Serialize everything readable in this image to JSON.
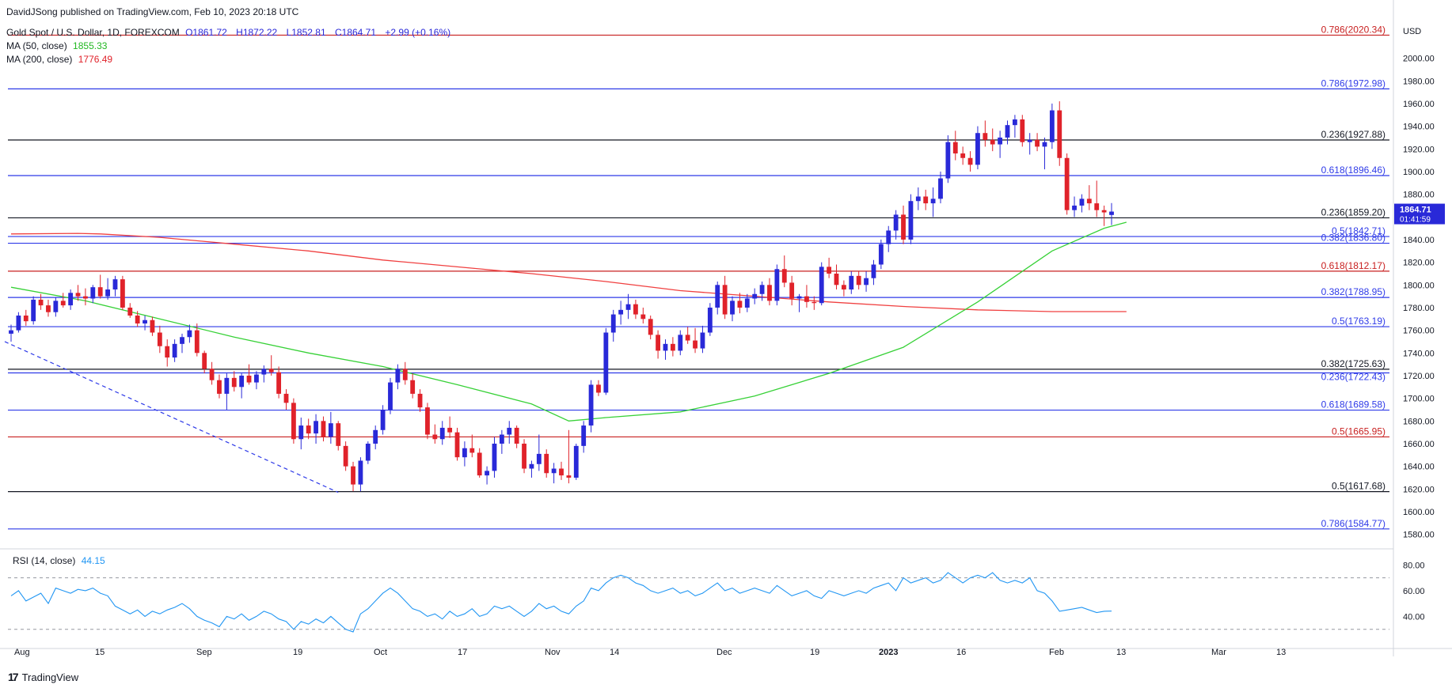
{
  "publisher": "DavidJSong published on TradingView.com, Feb 10, 2023 20:18 UTC",
  "footer_brand": "TradingView",
  "colors": {
    "up": "#2929d8",
    "down": "#e0222a",
    "ma50": "#37d137",
    "ma200": "#f04040",
    "rsi": "#2196f3",
    "blue_line": "#2e3ae8",
    "red_line": "#c82020",
    "black_line": "#131722"
  },
  "legend": {
    "symbol": "Gold Spot / U.S. Dollar, 1D, FOREXCOM",
    "ohlc": [
      {
        "k": "O",
        "v": "1861.72"
      },
      {
        "k": "H",
        "v": "1872.22"
      },
      {
        "k": "L",
        "v": "1852.81"
      },
      {
        "k": "C",
        "v": "1864.71"
      }
    ],
    "change": "+2.99 (+0.16%)",
    "ma50": {
      "label": "MA (50, close)",
      "value": "1855.33"
    },
    "ma200": {
      "label": "MA (200, close)",
      "value": "1776.49"
    }
  },
  "rsi": {
    "label": "RSI (14, close)",
    "value": "44.15"
  },
  "chart_data": {
    "type": "candlestick",
    "currency": "USD",
    "ylim": [
      1570,
      2036
    ],
    "y_ticks": [
      1580,
      1600,
      1620,
      1640,
      1660,
      1680,
      1700,
      1720,
      1740,
      1760,
      1780,
      1800,
      1820,
      1840,
      1860,
      1880,
      1900,
      1920,
      1940,
      1960,
      1980,
      2000
    ],
    "x_ticks": [
      "Aug",
      "15",
      "Sep",
      "19",
      "Oct",
      "17",
      "Nov",
      "14",
      "Dec",
      "19",
      "2023",
      "16",
      "Feb",
      "13",
      "Mar",
      "13"
    ],
    "last_price": {
      "value": "1864.71",
      "countdown": "01:41:59"
    },
    "fib_levels": [
      {
        "label": "0.786(2020.34)",
        "value": 2020.34,
        "color": "red"
      },
      {
        "label": "0.786(1972.98)",
        "value": 1972.98,
        "color": "blue"
      },
      {
        "label": "0.236(1927.88)",
        "value": 1927.88,
        "color": "black"
      },
      {
        "label": "0.618(1896.46)",
        "value": 1896.46,
        "color": "blue"
      },
      {
        "label": "0.236(1859.20)",
        "value": 1859.2,
        "color": "black"
      },
      {
        "label": "0.5(1842.71)",
        "value": 1842.71,
        "color": "blue"
      },
      {
        "label": "0.382(1836.80)",
        "value": 1836.8,
        "color": "blue"
      },
      {
        "label": "0.618(1812.17)",
        "value": 1812.17,
        "color": "red"
      },
      {
        "label": "0.382(1788.95)",
        "value": 1788.95,
        "color": "blue"
      },
      {
        "label": "0.5(1763.19)",
        "value": 1763.19,
        "color": "blue"
      },
      {
        "label": "0.382(1725.63)",
        "value": 1725.63,
        "color": "black"
      },
      {
        "label": "0.236(1722.43)",
        "value": 1722.43,
        "color": "blue"
      },
      {
        "label": "0.618(1689.58)",
        "value": 1689.58,
        "color": "blue"
      },
      {
        "label": "0.5(1665.95)",
        "value": 1665.95,
        "color": "red"
      },
      {
        "label": "0.5(1617.68)",
        "value": 1617.68,
        "color": "black"
      },
      {
        "label": "0.786(1584.77)",
        "value": 1584.77,
        "color": "blue"
      }
    ],
    "candles": [
      [
        1757,
        1765,
        1750,
        1760
      ],
      [
        1760,
        1776,
        1758,
        1773
      ],
      [
        1773,
        1778,
        1764,
        1768
      ],
      [
        1768,
        1790,
        1765,
        1787
      ],
      [
        1787,
        1792,
        1778,
        1782
      ],
      [
        1782,
        1787,
        1772,
        1776
      ],
      [
        1776,
        1789,
        1772,
        1786
      ],
      [
        1786,
        1793,
        1780,
        1782
      ],
      [
        1782,
        1796,
        1778,
        1793
      ],
      [
        1793,
        1800,
        1786,
        1790
      ],
      [
        1790,
        1797,
        1782,
        1788
      ],
      [
        1788,
        1800,
        1784,
        1798
      ],
      [
        1798,
        1809,
        1788,
        1790
      ],
      [
        1790,
        1806,
        1787,
        1796
      ],
      [
        1796,
        1808,
        1790,
        1805
      ],
      [
        1805,
        1808,
        1778,
        1780
      ],
      [
        1780,
        1784,
        1771,
        1773
      ],
      [
        1773,
        1777,
        1763,
        1766
      ],
      [
        1766,
        1773,
        1760,
        1769
      ],
      [
        1769,
        1772,
        1755,
        1758
      ],
      [
        1758,
        1764,
        1740,
        1746
      ],
      [
        1746,
        1752,
        1728,
        1736
      ],
      [
        1736,
        1752,
        1732,
        1748
      ],
      [
        1748,
        1757,
        1740,
        1754
      ],
      [
        1754,
        1765,
        1749,
        1760
      ],
      [
        1760,
        1766,
        1737,
        1740
      ],
      [
        1740,
        1742,
        1722,
        1726
      ],
      [
        1726,
        1732,
        1712,
        1716
      ],
      [
        1716,
        1721,
        1700,
        1704
      ],
      [
        1704,
        1722,
        1690,
        1718
      ],
      [
        1718,
        1724,
        1706,
        1710
      ],
      [
        1710,
        1722,
        1700,
        1720
      ],
      [
        1720,
        1730,
        1712,
        1714
      ],
      [
        1714,
        1724,
        1708,
        1721
      ],
      [
        1721,
        1729,
        1714,
        1726
      ],
      [
        1726,
        1738,
        1720,
        1723
      ],
      [
        1723,
        1728,
        1700,
        1704
      ],
      [
        1704,
        1708,
        1690,
        1696
      ],
      [
        1696,
        1700,
        1660,
        1664
      ],
      [
        1664,
        1683,
        1655,
        1676
      ],
      [
        1676,
        1682,
        1664,
        1669
      ],
      [
        1669,
        1686,
        1660,
        1680
      ],
      [
        1680,
        1684,
        1662,
        1666
      ],
      [
        1666,
        1688,
        1660,
        1678
      ],
      [
        1678,
        1680,
        1654,
        1658
      ],
      [
        1658,
        1662,
        1636,
        1640
      ],
      [
        1640,
        1644,
        1618,
        1624
      ],
      [
        1624,
        1648,
        1618,
        1645
      ],
      [
        1645,
        1662,
        1642,
        1660
      ],
      [
        1660,
        1676,
        1655,
        1672
      ],
      [
        1672,
        1694,
        1668,
        1690
      ],
      [
        1690,
        1718,
        1686,
        1714
      ],
      [
        1714,
        1730,
        1708,
        1726
      ],
      [
        1726,
        1732,
        1712,
        1716
      ],
      [
        1716,
        1722,
        1700,
        1704
      ],
      [
        1704,
        1708,
        1688,
        1692
      ],
      [
        1692,
        1696,
        1664,
        1668
      ],
      [
        1668,
        1677,
        1660,
        1664
      ],
      [
        1664,
        1680,
        1659,
        1674
      ],
      [
        1674,
        1684,
        1665,
        1670
      ],
      [
        1670,
        1674,
        1645,
        1648
      ],
      [
        1648,
        1662,
        1640,
        1656
      ],
      [
        1656,
        1668,
        1648,
        1652
      ],
      [
        1652,
        1656,
        1630,
        1632
      ],
      [
        1632,
        1640,
        1624,
        1636
      ],
      [
        1636,
        1666,
        1630,
        1660
      ],
      [
        1660,
        1672,
        1651,
        1668
      ],
      [
        1668,
        1680,
        1660,
        1674
      ],
      [
        1674,
        1676,
        1656,
        1660
      ],
      [
        1660,
        1664,
        1634,
        1638
      ],
      [
        1638,
        1645,
        1630,
        1642
      ],
      [
        1642,
        1668,
        1636,
        1651
      ],
      [
        1651,
        1655,
        1630,
        1634
      ],
      [
        1634,
        1643,
        1625,
        1638
      ],
      [
        1638,
        1644,
        1628,
        1632
      ],
      [
        1632,
        1672,
        1625,
        1630
      ],
      [
        1630,
        1660,
        1628,
        1658
      ],
      [
        1658,
        1680,
        1652,
        1676
      ],
      [
        1676,
        1716,
        1670,
        1712
      ],
      [
        1712,
        1716,
        1702,
        1705
      ],
      [
        1705,
        1762,
        1703,
        1758
      ],
      [
        1758,
        1778,
        1750,
        1774
      ],
      [
        1774,
        1786,
        1765,
        1778
      ],
      [
        1778,
        1792,
        1770,
        1783
      ],
      [
        1783,
        1787,
        1770,
        1774
      ],
      [
        1774,
        1780,
        1766,
        1770
      ],
      [
        1770,
        1773,
        1752,
        1756
      ],
      [
        1756,
        1760,
        1735,
        1742
      ],
      [
        1742,
        1752,
        1734,
        1748
      ],
      [
        1748,
        1754,
        1737,
        1742
      ],
      [
        1742,
        1760,
        1738,
        1756
      ],
      [
        1756,
        1763,
        1748,
        1751
      ],
      [
        1751,
        1762,
        1740,
        1744
      ],
      [
        1744,
        1764,
        1740,
        1758
      ],
      [
        1758,
        1784,
        1755,
        1780
      ],
      [
        1780,
        1803,
        1774,
        1800
      ],
      [
        1800,
        1808,
        1770,
        1774
      ],
      [
        1774,
        1790,
        1768,
        1786
      ],
      [
        1786,
        1793,
        1775,
        1780
      ],
      [
        1780,
        1792,
        1776,
        1788
      ],
      [
        1788,
        1797,
        1783,
        1792
      ],
      [
        1792,
        1803,
        1786,
        1800
      ],
      [
        1800,
        1806,
        1782,
        1786
      ],
      [
        1786,
        1818,
        1782,
        1814
      ],
      [
        1814,
        1826,
        1798,
        1802
      ],
      [
        1802,
        1808,
        1782,
        1788
      ],
      [
        1788,
        1792,
        1776,
        1790
      ],
      [
        1790,
        1800,
        1780,
        1785
      ],
      [
        1785,
        1790,
        1778,
        1784
      ],
      [
        1784,
        1820,
        1782,
        1816
      ],
      [
        1816,
        1824,
        1806,
        1810
      ],
      [
        1810,
        1818,
        1796,
        1800
      ],
      [
        1800,
        1804,
        1790,
        1796
      ],
      [
        1796,
        1812,
        1792,
        1808
      ],
      [
        1808,
        1812,
        1796,
        1800
      ],
      [
        1800,
        1812,
        1794,
        1806
      ],
      [
        1806,
        1822,
        1800,
        1818
      ],
      [
        1818,
        1840,
        1814,
        1836
      ],
      [
        1836,
        1852,
        1829,
        1848
      ],
      [
        1848,
        1866,
        1840,
        1862
      ],
      [
        1862,
        1870,
        1836,
        1840
      ],
      [
        1840,
        1880,
        1836,
        1874
      ],
      [
        1874,
        1886,
        1866,
        1878
      ],
      [
        1878,
        1884,
        1866,
        1872
      ],
      [
        1872,
        1886,
        1860,
        1876
      ],
      [
        1876,
        1900,
        1872,
        1894
      ],
      [
        1894,
        1932,
        1890,
        1926
      ],
      [
        1926,
        1936,
        1910,
        1916
      ],
      [
        1916,
        1922,
        1906,
        1912
      ],
      [
        1912,
        1918,
        1900,
        1906
      ],
      [
        1906,
        1940,
        1902,
        1934
      ],
      [
        1934,
        1945,
        1922,
        1928
      ],
      [
        1928,
        1938,
        1918,
        1924
      ],
      [
        1924,
        1936,
        1912,
        1930
      ],
      [
        1930,
        1945,
        1924,
        1941
      ],
      [
        1941,
        1950,
        1930,
        1946
      ],
      [
        1946,
        1950,
        1922,
        1926
      ],
      [
        1926,
        1934,
        1915,
        1928
      ],
      [
        1928,
        1934,
        1918,
        1922
      ],
      [
        1922,
        1930,
        1902,
        1926
      ],
      [
        1926,
        1960,
        1920,
        1954
      ],
      [
        1954,
        1962,
        1905,
        1912
      ],
      [
        1912,
        1916,
        1862,
        1866
      ],
      [
        1866,
        1878,
        1860,
        1870
      ],
      [
        1870,
        1880,
        1864,
        1876
      ],
      [
        1876,
        1888,
        1866,
        1872
      ],
      [
        1872,
        1892,
        1860,
        1866
      ],
      [
        1866,
        1870,
        1852,
        1864
      ],
      [
        1861.72,
        1872.22,
        1852.81,
        1864.71
      ]
    ],
    "ma200": [
      [
        0,
        1845
      ],
      [
        9,
        1845.5
      ],
      [
        12,
        1845
      ],
      [
        20,
        1842
      ],
      [
        30,
        1836
      ],
      [
        40,
        1830
      ],
      [
        50,
        1822
      ],
      [
        60,
        1816
      ],
      [
        70,
        1810
      ],
      [
        80,
        1803
      ],
      [
        90,
        1795
      ],
      [
        100,
        1790
      ],
      [
        110,
        1785
      ],
      [
        120,
        1781
      ],
      [
        130,
        1778
      ],
      [
        140,
        1776.5
      ],
      [
        150,
        1776.49
      ]
    ],
    "ma50": [
      [
        0,
        1798
      ],
      [
        10,
        1786
      ],
      [
        20,
        1770
      ],
      [
        30,
        1754
      ],
      [
        40,
        1740
      ],
      [
        50,
        1728
      ],
      [
        60,
        1712
      ],
      [
        70,
        1695
      ],
      [
        75,
        1680
      ],
      [
        80,
        1683
      ],
      [
        90,
        1688
      ],
      [
        100,
        1702
      ],
      [
        110,
        1722
      ],
      [
        120,
        1745
      ],
      [
        130,
        1785
      ],
      [
        140,
        1830
      ],
      [
        147,
        1850
      ],
      [
        150,
        1855.33
      ]
    ],
    "trendline": [
      [
        0,
        1750
      ],
      [
        44,
        1617
      ]
    ],
    "rsi_levels": [
      30,
      70
    ],
    "rsi_ticks": [
      40,
      60,
      80
    ],
    "rsi_series": [
      56,
      60,
      52,
      55,
      58,
      50,
      62,
      60,
      58,
      61,
      60,
      62,
      58,
      56,
      48,
      45,
      42,
      45,
      40,
      44,
      42,
      45,
      47,
      50,
      46,
      40,
      37,
      35,
      32,
      40,
      38,
      42,
      37,
      40,
      44,
      42,
      38,
      36,
      30,
      36,
      34,
      38,
      35,
      40,
      35,
      30,
      28,
      42,
      46,
      52,
      58,
      62,
      58,
      52,
      46,
      44,
      40,
      42,
      38,
      44,
      40,
      42,
      46,
      40,
      42,
      48,
      46,
      48,
      44,
      40,
      44,
      50,
      46,
      48,
      44,
      42,
      48,
      52,
      62,
      60,
      66,
      70,
      72,
      70,
      66,
      64,
      60,
      58,
      60,
      62,
      58,
      60,
      56,
      58,
      62,
      66,
      60,
      62,
      58,
      60,
      62,
      60,
      58,
      64,
      60,
      56,
      58,
      60,
      56,
      54,
      60,
      58,
      56,
      58,
      60,
      58,
      62,
      64,
      66,
      60,
      70,
      66,
      68,
      70,
      66,
      68,
      74,
      70,
      66,
      70,
      72,
      70,
      74,
      68,
      66,
      68,
      66,
      70,
      60,
      58,
      52,
      44,
      45,
      46,
      47,
      45,
      43,
      44,
      44.15
    ]
  }
}
